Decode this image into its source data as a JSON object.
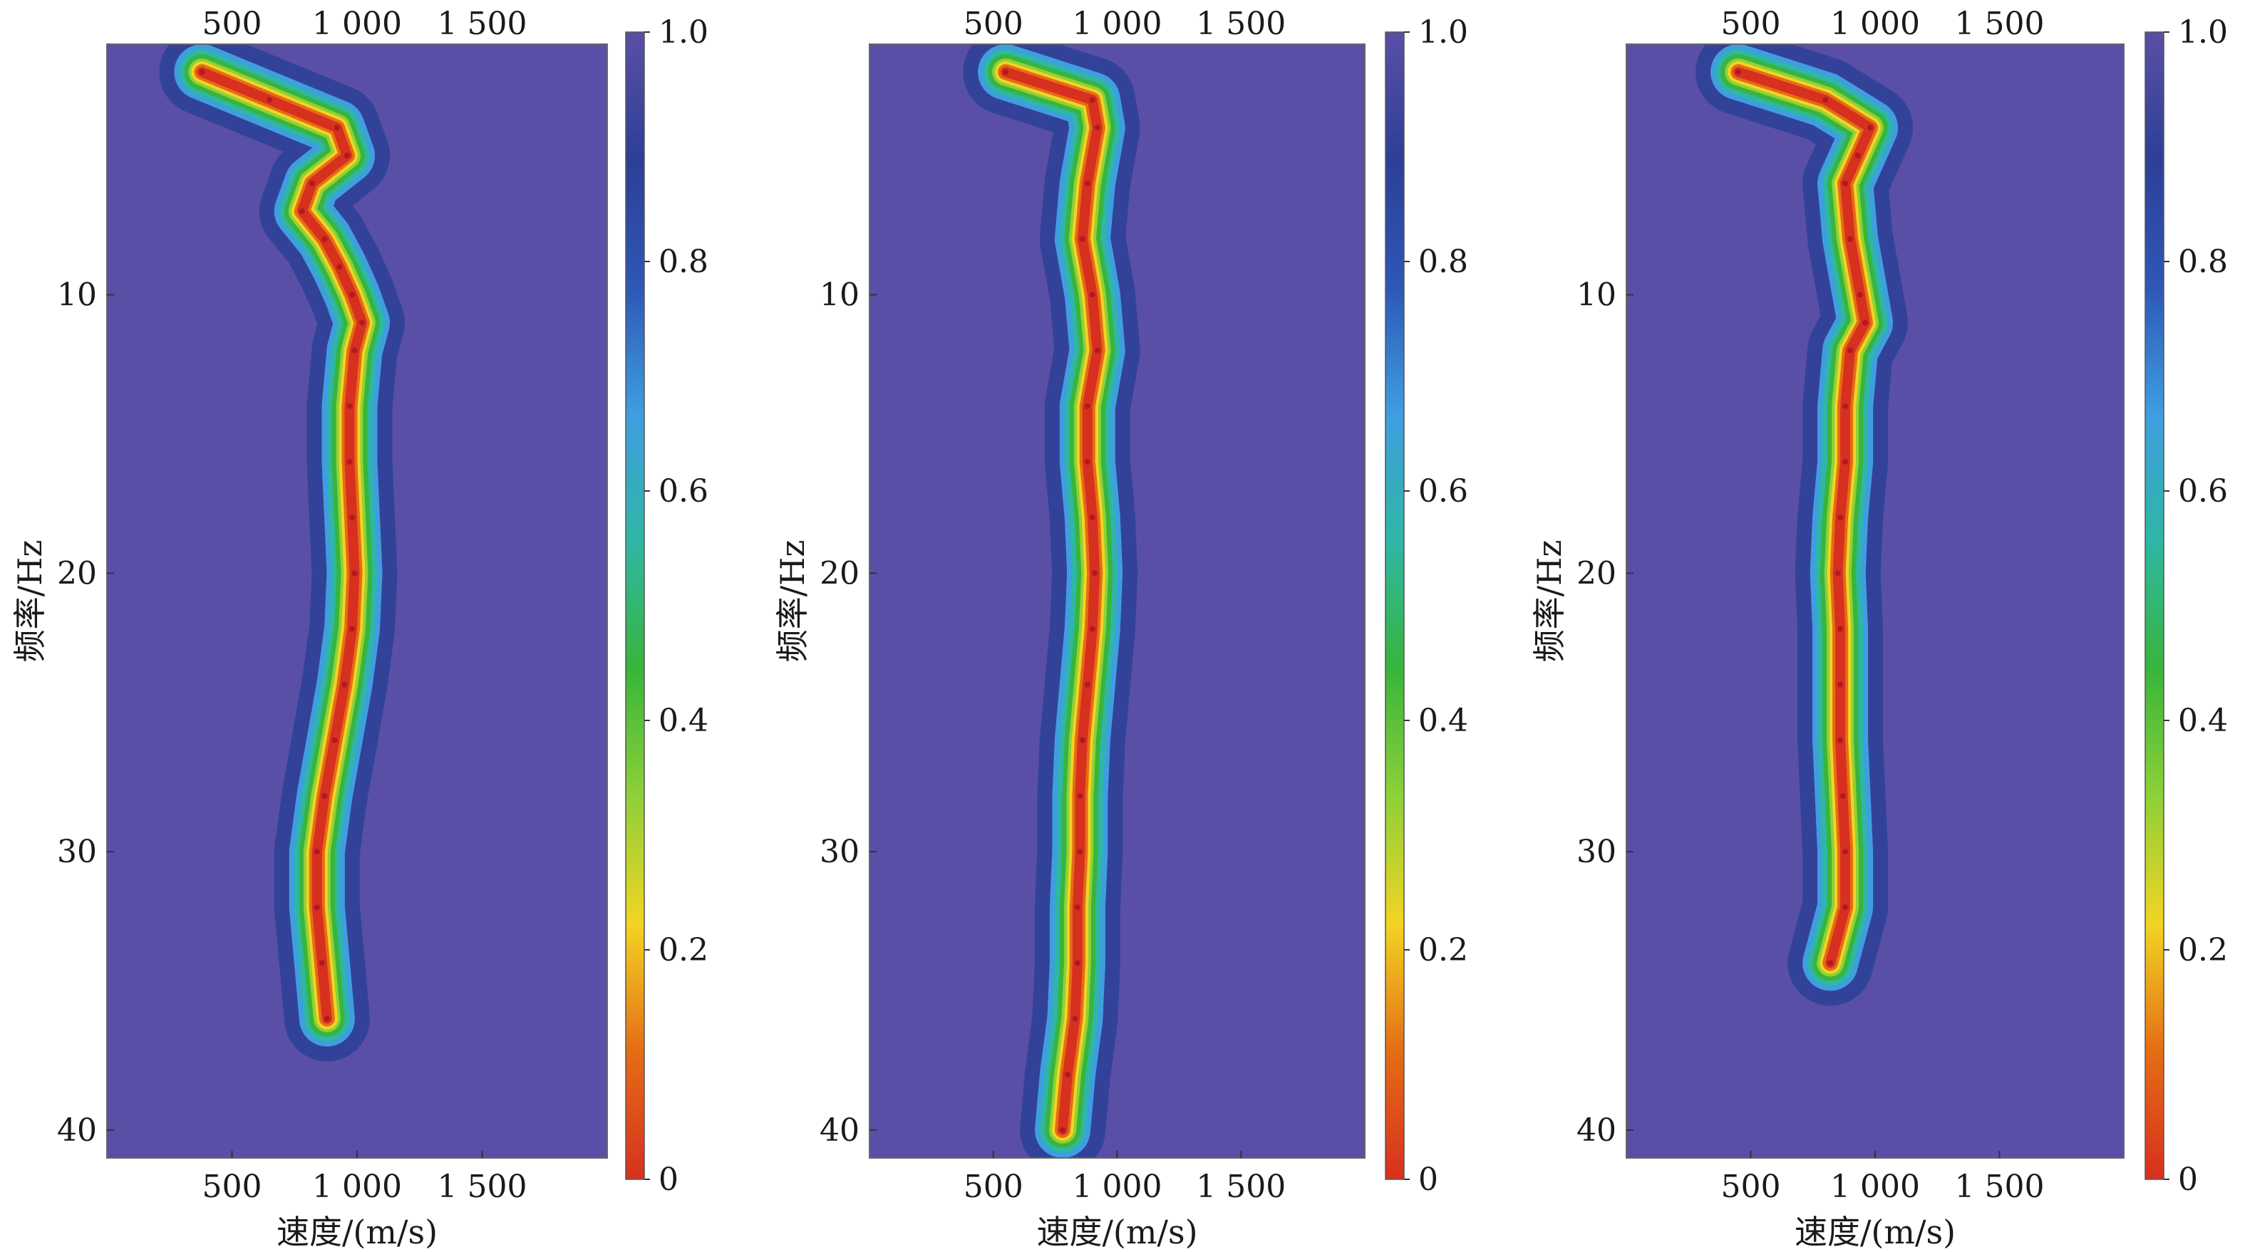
{
  "colors": {
    "background": "#5a4fa6",
    "colormap": [
      "#d7301f",
      "#e46d15",
      "#f2d423",
      "#8fd039",
      "#38b53a",
      "#2fb6a5",
      "#3f9ee0",
      "#2e57b7",
      "#2d3f96",
      "#5a4fa6"
    ]
  },
  "chart_data": [
    {
      "type": "heatmap",
      "panel": "left",
      "xlabel": "速度/(m/s)",
      "ylabel": "频率/Hz",
      "xticks": [
        "500",
        "1 000",
        "1 500"
      ],
      "yticks": [
        "10",
        "20",
        "30",
        "40"
      ],
      "xlim": [
        0,
        2000
      ],
      "ylim": [
        1,
        41
      ],
      "colorbar": {
        "ticks": [
          "1.0",
          "0.8",
          "0.6",
          "0.4",
          "0.2",
          "0"
        ],
        "range": [
          0,
          1
        ]
      },
      "ridge": {
        "frequency": [
          2,
          3,
          4,
          5,
          6,
          7,
          8,
          9,
          10,
          11,
          12,
          14,
          16,
          18,
          20,
          22,
          24,
          26,
          28,
          30,
          32,
          34,
          36
        ],
        "velocity": [
          380,
          650,
          920,
          960,
          820,
          780,
          870,
          930,
          980,
          1020,
          990,
          970,
          970,
          980,
          990,
          980,
          950,
          910,
          870,
          840,
          840,
          860,
          880
        ]
      }
    },
    {
      "type": "heatmap",
      "panel": "middle",
      "xlabel": "速度/(m/s)",
      "ylabel": "频率/Hz",
      "xticks": [
        "500",
        "1 000",
        "1 500"
      ],
      "yticks": [
        "10",
        "20",
        "30",
        "40"
      ],
      "xlim": [
        0,
        2000
      ],
      "ylim": [
        1,
        41
      ],
      "colorbar": {
        "ticks": [
          "1.0",
          "0.8",
          "0.6",
          "0.4",
          "0.2",
          "0"
        ],
        "range": [
          0,
          1
        ]
      },
      "ridge": {
        "frequency": [
          2,
          3,
          4,
          6,
          8,
          10,
          12,
          14,
          16,
          18,
          20,
          22,
          24,
          26,
          28,
          30,
          32,
          34,
          36,
          38,
          40
        ],
        "velocity": [
          550,
          900,
          920,
          880,
          860,
          900,
          920,
          880,
          880,
          900,
          910,
          900,
          880,
          860,
          850,
          850,
          840,
          840,
          830,
          800,
          780
        ]
      }
    },
    {
      "type": "heatmap",
      "panel": "right",
      "xlabel": "速度/(m/s)",
      "ylabel": "频率/Hz",
      "xticks": [
        "500",
        "1 000",
        "1 500"
      ],
      "yticks": [
        "10",
        "20",
        "30",
        "40"
      ],
      "xlim": [
        0,
        2000
      ],
      "ylim": [
        1,
        41
      ],
      "colorbar": {
        "ticks": [
          "1.0",
          "0.8",
          "0.6",
          "0.4",
          "0.2",
          "0"
        ],
        "range": [
          0,
          1
        ]
      },
      "ridge": {
        "frequency": [
          2,
          3,
          4,
          5,
          6,
          8,
          10,
          11,
          12,
          14,
          16,
          18,
          20,
          22,
          24,
          26,
          28,
          30,
          32,
          34
        ],
        "velocity": [
          450,
          800,
          980,
          930,
          880,
          900,
          940,
          960,
          900,
          880,
          880,
          860,
          850,
          860,
          860,
          860,
          870,
          880,
          880,
          820
        ]
      }
    }
  ]
}
